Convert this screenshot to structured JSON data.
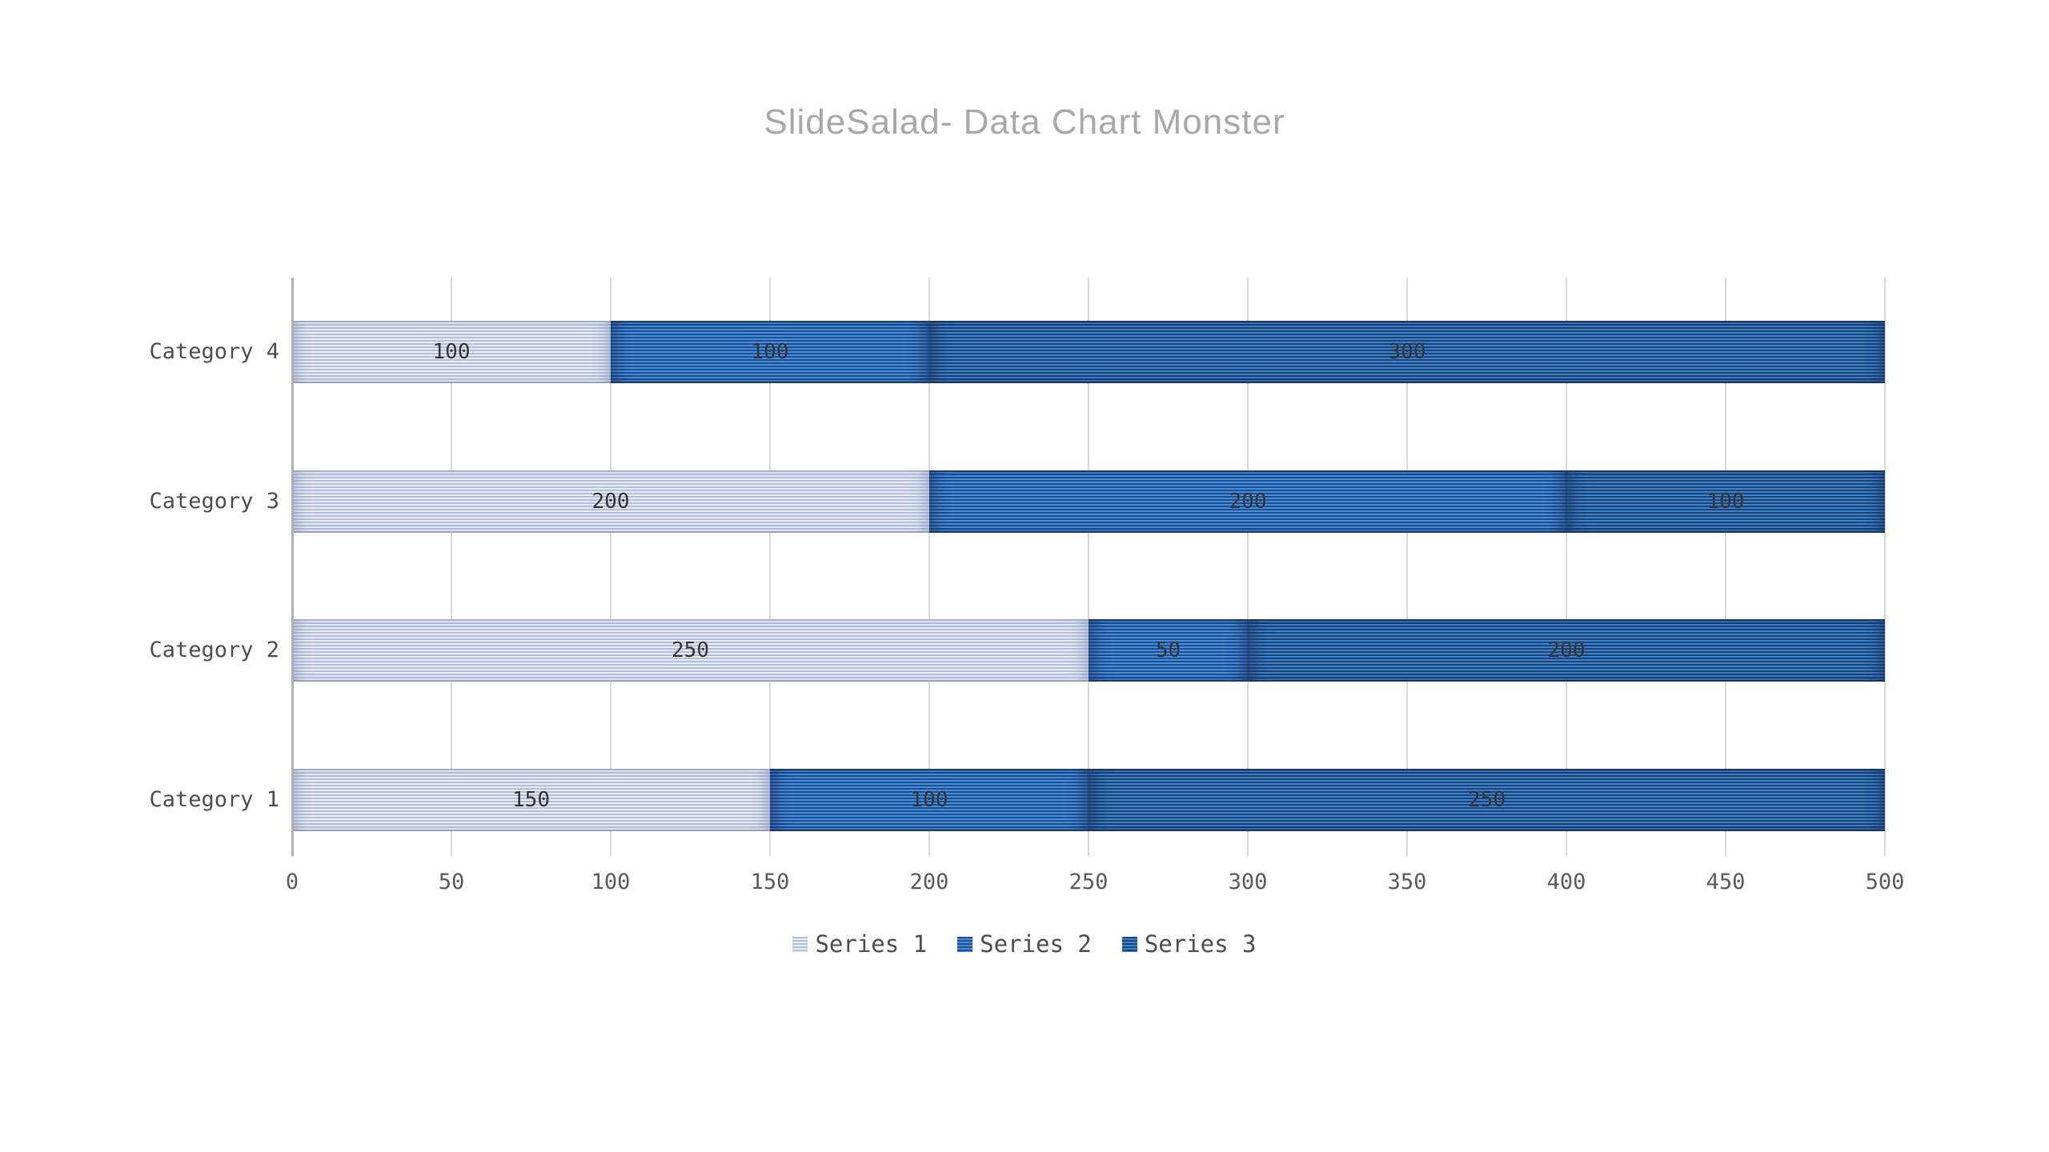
{
  "title": "SlideSalad- Data Chart Monster",
  "chart_data": {
    "type": "bar",
    "variant": "horizontal-stacked",
    "title": "SlideSalad- Data Chart Monster",
    "categories": [
      "Category 4",
      "Category 3",
      "Category 2",
      "Category 1"
    ],
    "series": [
      {
        "name": "Series 1",
        "values": [
          100,
          200,
          250,
          150
        ],
        "color_light": "#E8EBF2",
        "color_dark": "#B2BFDB"
      },
      {
        "name": "Series 2",
        "values": [
          100,
          200,
          50,
          100
        ],
        "color_light": "#4B8DD9",
        "color_dark": "#1E5095"
      },
      {
        "name": "Series 3",
        "values": [
          300,
          100,
          200,
          250
        ],
        "color_light": "#4080C8",
        "color_dark": "#1A4578"
      }
    ],
    "xlim": [
      0,
      500
    ],
    "xticks": [
      0,
      50,
      100,
      150,
      200,
      250,
      300,
      350,
      400,
      450,
      500
    ],
    "grid": "vertical",
    "legend_position": "bottom",
    "value_labels": true
  },
  "colors": {
    "background": "#FFFFFF",
    "title_text": "#A8A8A8",
    "gridline": "#D9D9D9",
    "axis_line": "#AFAFAF",
    "category_label": "#4D4D4D",
    "tick_label": "#595959",
    "value_label": "#333333"
  }
}
